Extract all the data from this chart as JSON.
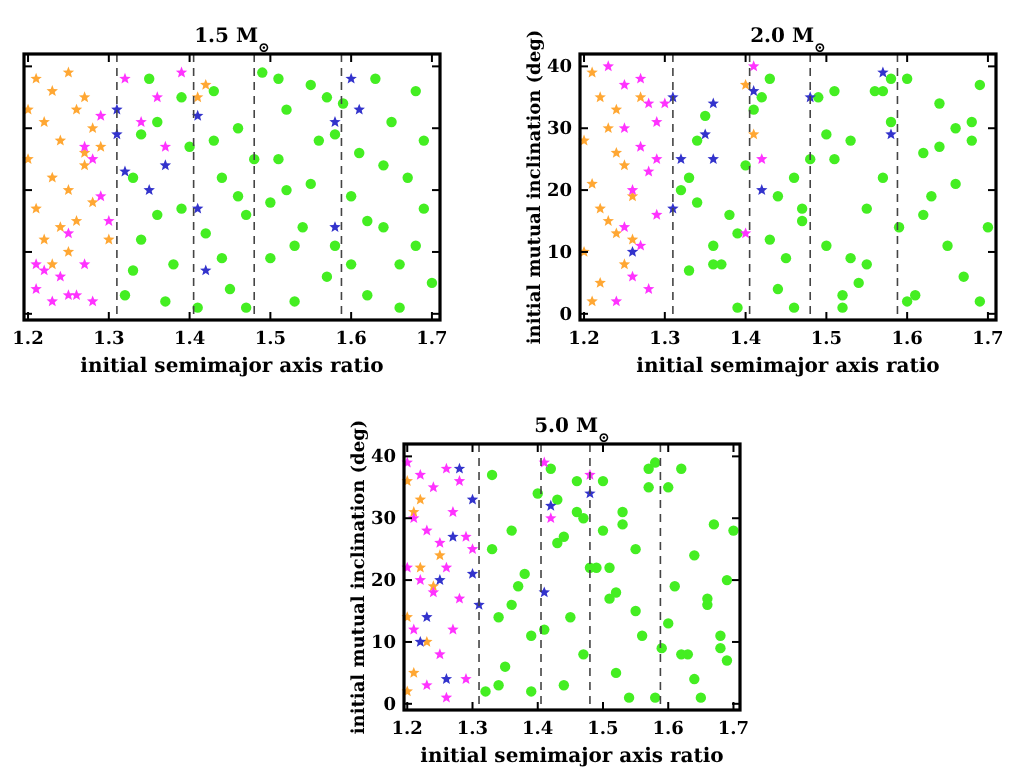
{
  "chart_data": [
    {
      "type": "scatter",
      "title": "1.5 M$_{⊙}$",
      "xlabel": "initial semimajor axis ratio",
      "xlim": [
        1.195,
        1.71
      ],
      "ylim": [
        -1,
        42
      ],
      "xticks": [
        1.2,
        1.3,
        1.4,
        1.5,
        1.6,
        1.7
      ],
      "yticks": [
        0,
        10,
        20,
        30,
        40
      ],
      "tick_labels": "x",
      "grid": false,
      "line_style": "dashed",
      "ref_lines": [
        {
          "axis": "x",
          "value": 1.31
        },
        {
          "axis": "x",
          "value": 1.405
        },
        {
          "axis": "x",
          "value": 1.48
        },
        {
          "axis": "x",
          "value": 1.588
        }
      ],
      "series": [
        {
          "color": "#44ee22",
          "marker": "circle",
          "x": [
            1.32,
            1.34,
            1.33,
            1.36,
            1.35,
            1.38,
            1.39,
            1.4,
            1.37,
            1.43,
            1.44,
            1.42,
            1.45,
            1.46,
            1.47,
            1.49,
            1.5,
            1.51,
            1.52,
            1.5,
            1.53,
            1.54,
            1.55,
            1.56,
            1.57,
            1.55,
            1.58,
            1.59,
            1.6,
            1.61,
            1.62,
            1.63,
            1.64,
            1.65,
            1.66,
            1.67,
            1.68,
            1.69,
            1.7,
            1.69,
            1.34,
            1.41,
            1.48,
            1.53,
            1.57,
            1.62,
            1.66,
            1.44,
            1.39,
            1.46,
            1.51,
            1.6,
            1.64,
            1.47,
            1.36,
            1.58,
            1.68,
            1.33,
            1.43,
            1.52
          ],
          "values": [
            3,
            12,
            22,
            31,
            38,
            8,
            17,
            27,
            2,
            36,
            22,
            13,
            4,
            30,
            16,
            39,
            9,
            25,
            33,
            18,
            2,
            14,
            37,
            28,
            6,
            21,
            11,
            34,
            19,
            26,
            3,
            38,
            14,
            31,
            8,
            22,
            36,
            17,
            5,
            28,
            29,
            1,
            25,
            11,
            35,
            15,
            1,
            9,
            35,
            19,
            38,
            8,
            24,
            1,
            16,
            29,
            11,
            7,
            28,
            20
          ]
        },
        {
          "color": "#ffa733",
          "marker": "star",
          "x": [
            1.21,
            1.23,
            1.25,
            1.27,
            1.22,
            1.24,
            1.26,
            1.28,
            1.2,
            1.29,
            1.23,
            1.25,
            1.21,
            1.27,
            1.24,
            1.22,
            1.26,
            1.28,
            1.3,
            1.25,
            1.42,
            1.41,
            1.23,
            1.2,
            1.27
          ],
          "values": [
            38,
            36,
            39,
            35,
            31,
            28,
            33,
            30,
            25,
            27,
            22,
            20,
            17,
            24,
            14,
            12,
            15,
            18,
            12,
            10,
            37,
            35,
            8,
            33,
            26
          ]
        },
        {
          "color": "#ff33ff",
          "marker": "star",
          "x": [
            1.21,
            1.23,
            1.25,
            1.22,
            1.27,
            1.28,
            1.29,
            1.24,
            1.26,
            1.3,
            1.28,
            1.32,
            1.36,
            1.39,
            1.37,
            1.27,
            1.29,
            1.21,
            1.25,
            1.34
          ],
          "values": [
            4,
            2,
            3,
            7,
            8,
            2,
            19,
            6,
            3,
            15,
            25,
            38,
            35,
            39,
            27,
            27,
            32,
            8,
            13,
            31
          ]
        },
        {
          "color": "#3333cc",
          "marker": "star",
          "x": [
            1.31,
            1.31,
            1.32,
            1.35,
            1.37,
            1.41,
            1.41,
            1.42,
            1.58,
            1.58,
            1.6,
            1.61
          ],
          "values": [
            33,
            29,
            23,
            20,
            24,
            32,
            17,
            7,
            31,
            14,
            38,
            33
          ]
        }
      ]
    },
    {
      "type": "scatter",
      "title": "2.0 M$_{⊙}$",
      "xlabel": "initial semimajor axis ratio",
      "ylabel": "initial mutual inclination (deg)",
      "xlim": [
        1.195,
        1.71
      ],
      "ylim": [
        -1,
        42
      ],
      "xticks": [
        1.2,
        1.3,
        1.4,
        1.5,
        1.6,
        1.7
      ],
      "yticks": [
        0,
        10,
        20,
        30,
        40
      ],
      "grid": false,
      "line_style": "dashed",
      "ref_lines": [
        {
          "axis": "x",
          "value": 1.31
        },
        {
          "axis": "x",
          "value": 1.405
        },
        {
          "axis": "x",
          "value": 1.48
        },
        {
          "axis": "x",
          "value": 1.588
        }
      ],
      "series": [
        {
          "color": "#44ee22",
          "marker": "circle",
          "x": [
            1.32,
            1.34,
            1.33,
            1.36,
            1.35,
            1.38,
            1.39,
            1.4,
            1.37,
            1.43,
            1.44,
            1.42,
            1.45,
            1.46,
            1.47,
            1.49,
            1.5,
            1.51,
            1.52,
            1.5,
            1.53,
            1.54,
            1.55,
            1.56,
            1.57,
            1.55,
            1.58,
            1.59,
            1.6,
            1.61,
            1.62,
            1.63,
            1.64,
            1.65,
            1.66,
            1.67,
            1.68,
            1.69,
            1.7,
            1.69,
            1.34,
            1.41,
            1.48,
            1.53,
            1.57,
            1.62,
            1.66,
            1.44,
            1.39,
            1.46,
            1.51,
            1.6,
            1.64,
            1.47,
            1.36,
            1.58,
            1.68,
            1.33,
            1.43,
            1.52
          ],
          "values": [
            20,
            28,
            7,
            11,
            32,
            16,
            1,
            24,
            8,
            38,
            19,
            35,
            9,
            1,
            15,
            35,
            11,
            25,
            1,
            29,
            28,
            5,
            17,
            36,
            22,
            8,
            31,
            14,
            38,
            3,
            26,
            19,
            34,
            11,
            21,
            6,
            28,
            37,
            14,
            2,
            18,
            33,
            25,
            9,
            36,
            16,
            30,
            4,
            13,
            22,
            36,
            2,
            27,
            17,
            8,
            38,
            31,
            22,
            12,
            3
          ]
        },
        {
          "color": "#ffa733",
          "marker": "star",
          "x": [
            1.21,
            1.22,
            1.24,
            1.2,
            1.23,
            1.25,
            1.21,
            1.22,
            1.26,
            1.24,
            1.2,
            1.23,
            1.25,
            1.22,
            1.21,
            1.27,
            1.4,
            1.41,
            1.24,
            1.26
          ],
          "values": [
            39,
            35,
            33,
            28,
            30,
            24,
            21,
            17,
            19,
            13,
            10,
            15,
            8,
            5,
            2,
            35,
            37,
            29,
            26,
            12
          ]
        },
        {
          "color": "#ff33ff",
          "marker": "star",
          "x": [
            1.23,
            1.25,
            1.27,
            1.28,
            1.29,
            1.27,
            1.28,
            1.26,
            1.29,
            1.25,
            1.27,
            1.26,
            1.28,
            1.24,
            1.41,
            1.42,
            1.4,
            1.3,
            1.29,
            1.25
          ],
          "values": [
            40,
            37,
            38,
            34,
            31,
            27,
            23,
            20,
            16,
            14,
            11,
            6,
            4,
            2,
            40,
            25,
            13,
            34,
            25,
            30
          ]
        },
        {
          "color": "#3333cc",
          "marker": "star",
          "x": [
            1.31,
            1.32,
            1.31,
            1.36,
            1.35,
            1.36,
            1.41,
            1.42,
            1.48,
            1.57,
            1.58,
            1.26
          ],
          "values": [
            35,
            25,
            17,
            34,
            29,
            25,
            36,
            20,
            35,
            39,
            29,
            10
          ]
        }
      ]
    },
    {
      "type": "scatter",
      "title": "5.0 M$_{⊙}$",
      "xlabel": "initial semimajor axis ratio",
      "ylabel": "initial mutual inclination (deg)",
      "xlim": [
        1.195,
        1.71
      ],
      "ylim": [
        -1,
        42
      ],
      "xticks": [
        1.2,
        1.3,
        1.4,
        1.5,
        1.6,
        1.7
      ],
      "yticks": [
        0,
        10,
        20,
        30,
        40
      ],
      "grid": false,
      "line_style": "dashed",
      "ref_lines": [
        {
          "axis": "x",
          "value": 1.31
        },
        {
          "axis": "x",
          "value": 1.405
        },
        {
          "axis": "x",
          "value": 1.48
        },
        {
          "axis": "x",
          "value": 1.588
        }
      ],
      "series": [
        {
          "color": "#44ee22",
          "marker": "circle",
          "x": [
            1.32,
            1.34,
            1.33,
            1.36,
            1.35,
            1.38,
            1.39,
            1.4,
            1.37,
            1.43,
            1.44,
            1.42,
            1.45,
            1.46,
            1.47,
            1.49,
            1.5,
            1.51,
            1.52,
            1.5,
            1.53,
            1.54,
            1.55,
            1.56,
            1.57,
            1.55,
            1.58,
            1.59,
            1.6,
            1.61,
            1.62,
            1.63,
            1.64,
            1.65,
            1.66,
            1.67,
            1.68,
            1.69,
            1.7,
            1.69,
            1.34,
            1.41,
            1.48,
            1.53,
            1.57,
            1.62,
            1.66,
            1.44,
            1.39,
            1.46,
            1.51,
            1.6,
            1.64,
            1.47,
            1.36,
            1.58,
            1.68,
            1.33,
            1.43,
            1.52
          ],
          "values": [
            2,
            14,
            37,
            28,
            6,
            21,
            11,
            34,
            19,
            26,
            3,
            38,
            14,
            31,
            8,
            22,
            36,
            17,
            5,
            28,
            29,
            1,
            25,
            11,
            35,
            15,
            1,
            9,
            35,
            19,
            38,
            8,
            24,
            1,
            16,
            29,
            11,
            7,
            28,
            20,
            3,
            12,
            22,
            31,
            38,
            8,
            17,
            27,
            2,
            36,
            22,
            13,
            4,
            30,
            16,
            39,
            9,
            25,
            33,
            18
          ]
        },
        {
          "color": "#ffa733",
          "marker": "star",
          "x": [
            1.2,
            1.21,
            1.22,
            1.24,
            1.2,
            1.23,
            1.21,
            1.25,
            1.22,
            1.2
          ],
          "values": [
            36,
            31,
            22,
            19,
            14,
            10,
            5,
            24,
            33,
            2
          ]
        },
        {
          "color": "#ff33ff",
          "marker": "star",
          "x": [
            1.2,
            1.22,
            1.24,
            1.26,
            1.28,
            1.21,
            1.23,
            1.25,
            1.27,
            1.29,
            1.22,
            1.24,
            1.26,
            1.28,
            1.3,
            1.21,
            1.25,
            1.27,
            1.41,
            1.42,
            1.48,
            1.23,
            1.29,
            1.2,
            1.26
          ],
          "values": [
            39,
            37,
            35,
            38,
            36,
            30,
            28,
            26,
            31,
            27,
            20,
            18,
            22,
            17,
            25,
            12,
            8,
            12,
            39,
            30,
            37,
            3,
            4,
            22,
            1
          ]
        },
        {
          "color": "#3333cc",
          "marker": "star",
          "x": [
            1.28,
            1.3,
            1.27,
            1.25,
            1.23,
            1.3,
            1.31,
            1.42,
            1.41,
            1.48,
            1.22,
            1.26
          ],
          "values": [
            38,
            33,
            27,
            20,
            14,
            21,
            16,
            32,
            18,
            34,
            10,
            4
          ]
        }
      ]
    }
  ]
}
